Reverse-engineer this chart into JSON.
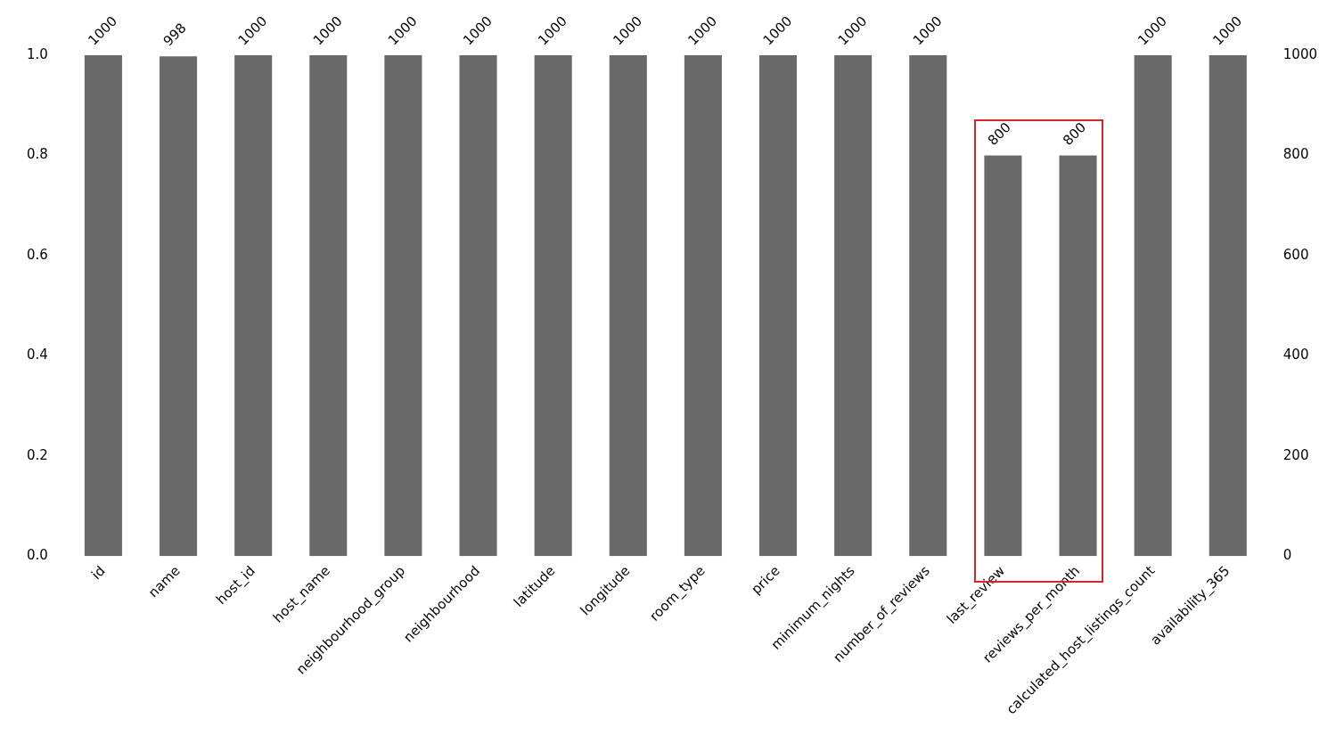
{
  "chart_data": {
    "type": "bar",
    "categories": [
      "id",
      "name",
      "host_id",
      "host_name",
      "neighbourhood_group",
      "neighbourhood",
      "latitude",
      "longitude",
      "room_type",
      "price",
      "minimum_nights",
      "number_of_reviews",
      "last_review",
      "reviews_per_month",
      "calculated_host_listings_count",
      "availability_365"
    ],
    "series": [
      {
        "color": "#696969",
        "axis": "y2",
        "values": [
          1000,
          998,
          1000,
          1000,
          1000,
          1000,
          1000,
          1000,
          1000,
          1000,
          1000,
          1000,
          800,
          800,
          1000,
          1000
        ]
      }
    ],
    "ylim": [
      0,
      1
    ],
    "yticks": [
      {
        "value": 0,
        "label": "0.0"
      },
      {
        "value": 0.2,
        "label": "0.2"
      },
      {
        "value": 0.4,
        "label": "0.4"
      },
      {
        "value": 0.6,
        "label": "0.6"
      },
      {
        "value": 0.8,
        "label": "0.8"
      },
      {
        "value": 1,
        "label": "1.0"
      }
    ],
    "y2lim": [
      0,
      1000
    ],
    "y2ticks": [
      0,
      200,
      400,
      600,
      800,
      1000
    ],
    "data_labels": true,
    "grid": false,
    "legend": false
  }
}
